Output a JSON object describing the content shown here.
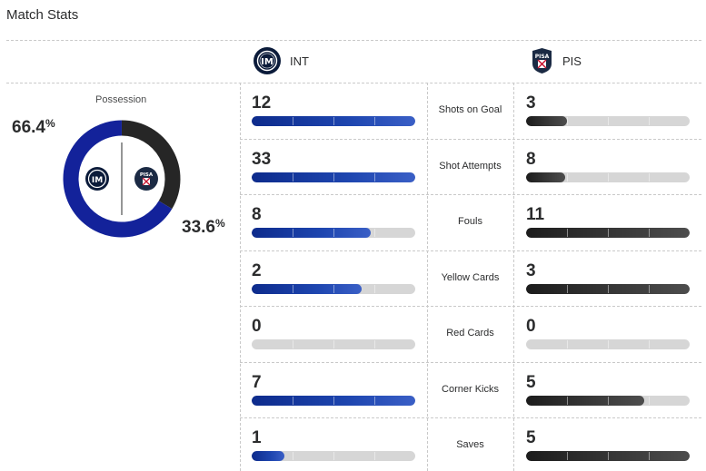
{
  "title": "Match Stats",
  "teams": {
    "home": {
      "abbr": "INT",
      "color": "#1a3ea8"
    },
    "away": {
      "abbr": "PIS",
      "color": "#2b2b2b"
    }
  },
  "possession": {
    "label": "Possession",
    "home_value": "66.4",
    "away_value": "33.6",
    "percent_sign": "%",
    "home_fraction": 0.664,
    "away_fraction": 0.336
  },
  "stats": [
    {
      "name": "Shots on Goal",
      "home": "12",
      "away": "3",
      "home_fill": 1.0,
      "away_fill": 0.25
    },
    {
      "name": "Shot Attempts",
      "home": "33",
      "away": "8",
      "home_fill": 1.0,
      "away_fill": 0.24
    },
    {
      "name": "Fouls",
      "home": "8",
      "away": "11",
      "home_fill": 0.73,
      "away_fill": 1.0
    },
    {
      "name": "Yellow Cards",
      "home": "2",
      "away": "3",
      "home_fill": 0.67,
      "away_fill": 1.0
    },
    {
      "name": "Red Cards",
      "home": "0",
      "away": "0",
      "home_fill": 0.0,
      "away_fill": 0.0
    },
    {
      "name": "Corner Kicks",
      "home": "7",
      "away": "5",
      "home_fill": 1.0,
      "away_fill": 0.72
    },
    {
      "name": "Saves",
      "home": "1",
      "away": "5",
      "home_fill": 0.2,
      "away_fill": 1.0
    }
  ]
}
